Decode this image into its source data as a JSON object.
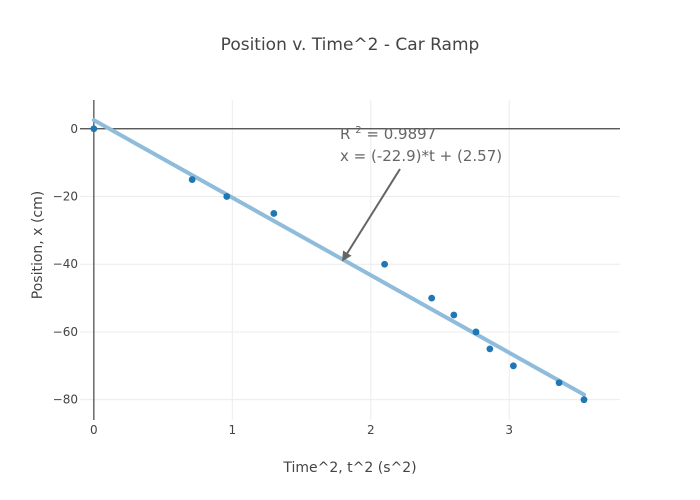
{
  "chart_data": {
    "type": "scatter",
    "title": "Position v. Time^2 - Car Ramp",
    "xlabel": "Time^2, t^2 (s^2)",
    "ylabel": "Position, x (cm)",
    "xlim": [
      -0.1,
      3.8
    ],
    "ylim": [
      -86,
      8.5
    ],
    "x_ticks": [
      0,
      1,
      2,
      3
    ],
    "y_ticks": [
      0,
      -20,
      -40,
      -60,
      -80
    ],
    "grid": true,
    "series": [
      {
        "type": "scatter",
        "color": "#1f77b4",
        "points": [
          {
            "x": 0,
            "y": 0
          },
          {
            "x": 0.71,
            "y": -15
          },
          {
            "x": 0.96,
            "y": -20
          },
          {
            "x": 1.3,
            "y": -25
          },
          {
            "x": 2.1,
            "y": -40
          },
          {
            "x": 2.44,
            "y": -50
          },
          {
            "x": 2.6,
            "y": -55
          },
          {
            "x": 2.76,
            "y": -60
          },
          {
            "x": 2.86,
            "y": -65
          },
          {
            "x": 3.03,
            "y": -70
          },
          {
            "x": 3.36,
            "y": -75
          },
          {
            "x": 3.54,
            "y": -80
          }
        ]
      },
      {
        "type": "line",
        "color": "#8fbcdb",
        "slope": -22.9,
        "intercept": 2.57,
        "x_range": [
          0,
          3.54
        ]
      }
    ],
    "annotation": {
      "line1_prefix": "R",
      "line1_sup": "2",
      "line1_rest": " = 0.9897",
      "line2": "x = (-22.9)*t + (2.57)",
      "arrow_target": {
        "x": 1.8,
        "y": -38.7
      },
      "color": "#666666"
    }
  }
}
